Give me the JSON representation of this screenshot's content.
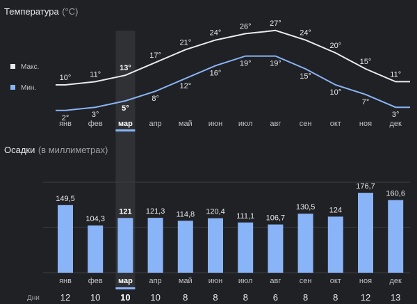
{
  "temperature": {
    "title": "Температура",
    "unit": "(°C)",
    "legend": {
      "max": "Макс.",
      "min": "Мин."
    }
  },
  "precipitation": {
    "title": "Осадки",
    "unit": "(в миллиметрах)"
  },
  "days_caption": "Дни",
  "selected_index": 2,
  "colors": {
    "max_line": "#e8eaed",
    "min_line": "#8ab4f8",
    "bar": "#8ab4f8",
    "highlight": "#3c4043",
    "selected_underline": "#8ab4f8",
    "grid": "#3c4043"
  },
  "chart_data": [
    {
      "type": "line",
      "categories": [
        "янв",
        "фев",
        "мар",
        "апр",
        "май",
        "июн",
        "июл",
        "авг",
        "сен",
        "окт",
        "ноя",
        "дек"
      ],
      "series": [
        {
          "name": "Макс.",
          "values": [
            10,
            11,
            13,
            17,
            21,
            24,
            26,
            27,
            24,
            20,
            15,
            11
          ],
          "labels": [
            "10°",
            "11°",
            "13°",
            "17°",
            "21°",
            "24°",
            "26°",
            "27°",
            "24°",
            "20°",
            "15°",
            "11°"
          ]
        },
        {
          "name": "Мин.",
          "values": [
            2,
            3,
            5,
            8,
            12,
            16,
            19,
            19,
            15,
            10,
            7,
            3
          ],
          "labels": [
            "2°",
            "3°",
            "5°",
            "8°",
            "12°",
            "16°",
            "19°",
            "19°",
            "15°",
            "10°",
            "7°",
            "3°"
          ]
        }
      ],
      "ylim": [
        0,
        30
      ],
      "grid": false,
      "legend": "left"
    },
    {
      "type": "bar",
      "categories": [
        "янв",
        "фев",
        "мар",
        "апр",
        "май",
        "июн",
        "июл",
        "авг",
        "сен",
        "окт",
        "ноя",
        "дек"
      ],
      "values": [
        149.5,
        104.3,
        121,
        121.3,
        114.8,
        120.4,
        111.1,
        106.7,
        130.5,
        124,
        176.7,
        160.6
      ],
      "labels": [
        "149,5",
        "104,3",
        "121",
        "121,3",
        "114,8",
        "120,4",
        "111,1",
        "106,7",
        "130,5",
        "124",
        "176,7",
        "160,6"
      ],
      "days": [
        "12",
        "10",
        "10",
        "10",
        "8",
        "8",
        "8",
        "6",
        "8",
        "8",
        "12",
        "13"
      ],
      "ylim": [
        0,
        200
      ],
      "grid": true
    }
  ]
}
